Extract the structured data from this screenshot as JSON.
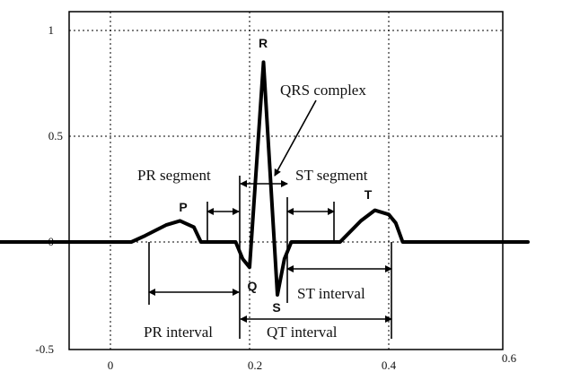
{
  "chart_data": {
    "type": "line",
    "title": "",
    "xlabel": "",
    "ylabel": "",
    "xlim": [
      -0.17,
      0.6
    ],
    "ylim": [
      -0.5,
      1.03
    ],
    "x_ticks": [
      {
        "value": 0,
        "label": "0"
      },
      {
        "value": 0.2,
        "label": "0.2"
      },
      {
        "value": 0.4,
        "label": "0.4"
      },
      {
        "value": 0.6,
        "label": "0.6"
      }
    ],
    "y_ticks": [
      {
        "value": 1,
        "label": "1"
      },
      {
        "value": 0.5,
        "label": "0.5"
      },
      {
        "value": 0,
        "label": "0"
      },
      {
        "value": -0.5,
        "label": "-0.5"
      }
    ],
    "grid": true,
    "series": [
      {
        "color": "#000000",
        "x": [
          -0.17,
          0.03,
          0.05,
          0.08,
          0.1,
          0.12,
          0.13,
          0.18,
          0.19,
          0.2,
          0.22,
          0.24,
          0.25,
          0.26,
          0.33,
          0.36,
          0.38,
          0.4,
          0.41,
          0.42,
          0.6
        ],
        "y": [
          0,
          0,
          0.03,
          0.08,
          0.1,
          0.07,
          0,
          0,
          -0.08,
          -0.12,
          0.85,
          -0.25,
          -0.08,
          0,
          0,
          0.1,
          0.15,
          0.13,
          0.09,
          0,
          0
        ]
      }
    ],
    "wave_labels": [
      {
        "text": "P",
        "x": 0.09,
        "y": 0.15
      },
      {
        "text": "R",
        "x": 0.22,
        "y": 0.93
      },
      {
        "text": "Q",
        "x": 0.195,
        "y": -0.14
      },
      {
        "text": "S",
        "x": 0.24,
        "y": -0.33
      },
      {
        "text": "T",
        "x": 0.39,
        "y": 0.21
      }
    ],
    "annotations": {
      "qrs_complex": "QRS complex",
      "pr_segment": "PR segment",
      "st_segment": "ST segment",
      "st_interval": "ST interval",
      "pr_interval": "PR interval",
      "qt_interval": "QT interval"
    }
  }
}
